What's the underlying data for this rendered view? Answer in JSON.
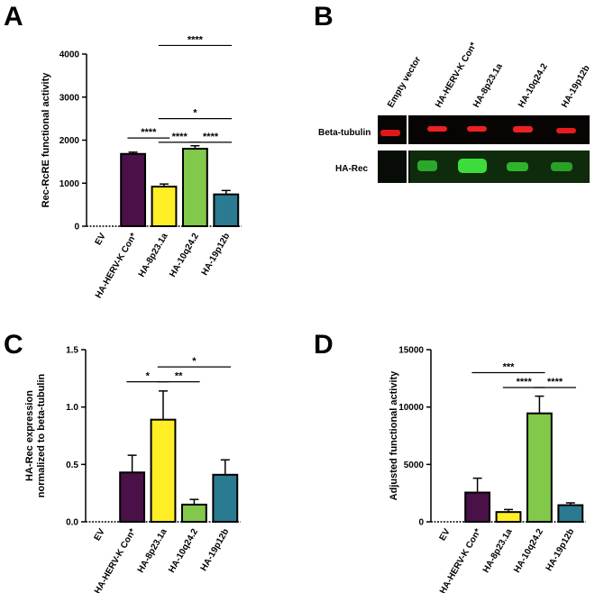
{
  "panels": {
    "a": "A",
    "b": "B",
    "c": "C",
    "d": "D"
  },
  "colors": {
    "EV": "#000000",
    "HA-HERV-K Con*": "#4a1048",
    "HA-8p23.1a": "#ffee25",
    "HA-10q24.2": "#82c84a",
    "HA-19p12b": "#2a7a90"
  },
  "blot": {
    "lanes": [
      "Empty vector",
      "HA-HERV-K Con*",
      "HA-8p23.1a",
      "HA-10q24.2",
      "HA-19p12b"
    ],
    "rows": [
      "Beta-tubulin",
      "HA-Rec"
    ]
  },
  "chart_data": [
    {
      "id": "A",
      "type": "bar",
      "categories": [
        "EV",
        "HA-HERV-K Con*",
        "HA-8p23.1a",
        "HA-10q24.2",
        "HA-19p12b"
      ],
      "values": [
        0,
        1680,
        920,
        1800,
        740
      ],
      "errors": [
        0,
        40,
        60,
        70,
        90
      ],
      "ylabel": "Rec-RcRE functional activity",
      "ylim": [
        0,
        4000
      ],
      "yticks": [
        0,
        1000,
        2000,
        3000,
        4000
      ],
      "significance": [
        {
          "from": 2,
          "to": 4,
          "label": "****",
          "level": 4200
        },
        {
          "from": 2,
          "to": 3,
          "label": "****",
          "level": 1950
        },
        {
          "from": 1,
          "to": 2,
          "label": "****",
          "level": 2050
        },
        {
          "from": 2,
          "to": 4,
          "label": "*",
          "level": 2500
        },
        {
          "from": 3,
          "to": 4,
          "label": "****",
          "level": 1950
        }
      ]
    },
    {
      "id": "C",
      "type": "bar",
      "categories": [
        "EV",
        "HA-HERV-K Con*",
        "HA-8p23.1a",
        "HA-10q24.2",
        "HA-19p12b"
      ],
      "values": [
        0,
        0.43,
        0.89,
        0.15,
        0.41
      ],
      "errors": [
        0,
        0.15,
        0.25,
        0.045,
        0.13
      ],
      "ylabel": "HA-Rec expression normalized to beta-tubulin",
      "ylabel_lines": [
        "HA-Rec expression",
        "normalized to beta-tubulin"
      ],
      "ylim": [
        0,
        1.5
      ],
      "yticks": [
        0.0,
        0.5,
        1.0,
        1.5
      ],
      "significance": [
        {
          "from": 1,
          "to": 2,
          "label": "*",
          "level": 1.22
        },
        {
          "from": 2,
          "to": 3,
          "label": "**",
          "level": 1.22
        },
        {
          "from": 2,
          "to": 4,
          "label": "*",
          "level": 1.35
        }
      ]
    },
    {
      "id": "D",
      "type": "bar",
      "categories": [
        "EV",
        "HA-HERV-K Con*",
        "HA-8p23.1a",
        "HA-10q24.2",
        "HA-19p12b"
      ],
      "values": [
        0,
        2550,
        850,
        9450,
        1450
      ],
      "errors": [
        0,
        1250,
        220,
        1500,
        200
      ],
      "ylabel": "Adjusted functional activity",
      "ylim": [
        0,
        15000
      ],
      "yticks": [
        0,
        5000,
        10000,
        15000
      ],
      "significance": [
        {
          "from": 1,
          "to": 3,
          "label": "***",
          "level": 13000
        },
        {
          "from": 2,
          "to": 3,
          "label": "****",
          "level": 11700
        },
        {
          "from": 3,
          "to": 4,
          "label": "****",
          "level": 11700
        }
      ]
    }
  ]
}
